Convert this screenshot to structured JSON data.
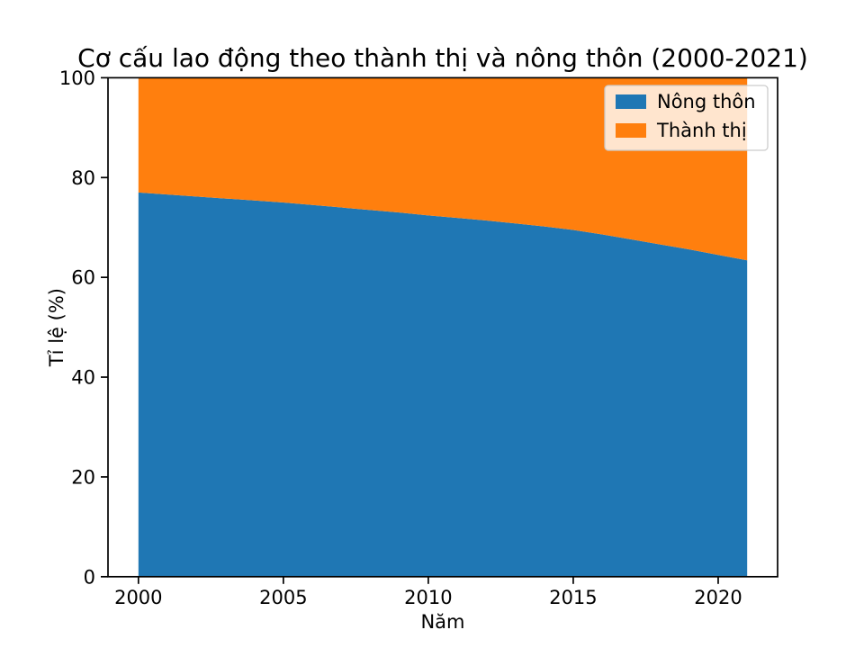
{
  "chart_data": {
    "type": "area",
    "stacked": true,
    "title": "Cơ cấu lao động theo thành thị và nông thôn (2000-2021)",
    "xlabel": "Năm",
    "ylabel": "Tỉ lệ (%)",
    "xlim": [
      2000,
      2021
    ],
    "ylim": [
      0,
      100
    ],
    "xticks": [
      2000,
      2005,
      2010,
      2015,
      2020
    ],
    "yticks": [
      0,
      20,
      40,
      60,
      80,
      100
    ],
    "grid": false,
    "legend_position": "upper right",
    "x": [
      2000,
      2001,
      2002,
      2003,
      2004,
      2005,
      2006,
      2007,
      2008,
      2009,
      2010,
      2011,
      2012,
      2013,
      2014,
      2015,
      2016,
      2017,
      2018,
      2019,
      2020,
      2021
    ],
    "series": [
      {
        "name": "Nông thôn",
        "color": "#1f77b4",
        "values": [
          77.0,
          76.6,
          76.2,
          75.8,
          75.4,
          75.0,
          74.5,
          74.0,
          73.5,
          73.0,
          72.4,
          71.9,
          71.4,
          70.8,
          70.2,
          69.5,
          68.6,
          67.6,
          66.6,
          65.6,
          64.5,
          63.4
        ]
      },
      {
        "name": "Thành thị",
        "color": "#ff7f0e",
        "values": [
          23.0,
          23.4,
          23.8,
          24.2,
          24.6,
          25.0,
          25.5,
          26.0,
          26.5,
          27.0,
          27.6,
          28.1,
          28.6,
          29.2,
          29.8,
          30.5,
          31.4,
          32.4,
          33.4,
          34.4,
          35.5,
          36.6
        ]
      }
    ]
  },
  "colors": {
    "background": "#ffffff",
    "text": "#000000",
    "legend_border": "#cccccc"
  }
}
